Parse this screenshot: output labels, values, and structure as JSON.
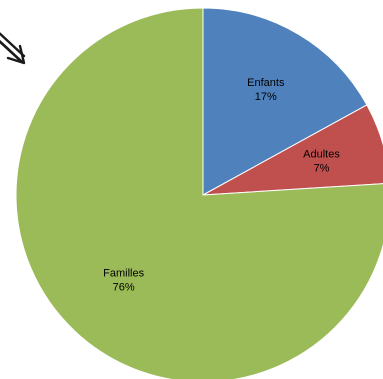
{
  "chart_data": {
    "type": "pie",
    "title": "",
    "start_angle_deg": 0,
    "direction": "clockwise",
    "slices": [
      {
        "name": "Enfants",
        "value": 17,
        "value_label": "17%",
        "color": "#4f81bd"
      },
      {
        "name": "Adultes",
        "value": 7,
        "value_label": "7%",
        "color": "#c0504d"
      },
      {
        "name": "Familles",
        "value": 76,
        "value_label": "76%",
        "color": "#9bbb59"
      }
    ]
  },
  "annotations": {
    "arrow_icon": "hand-drawn-arrow-icon"
  }
}
